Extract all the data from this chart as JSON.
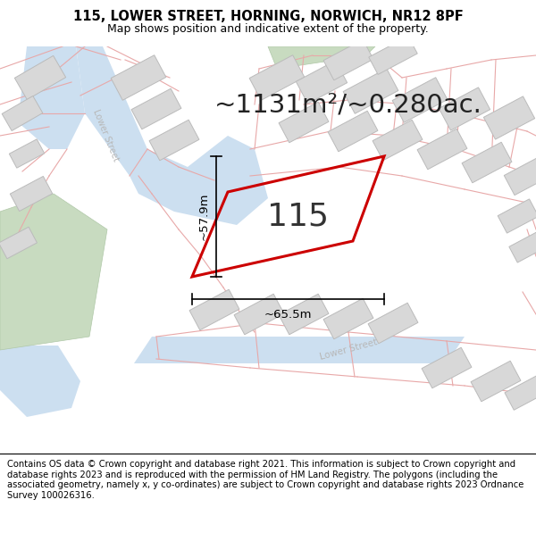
{
  "title_line1": "115, LOWER STREET, HORNING, NORWICH, NR12 8PF",
  "title_line2": "Map shows position and indicative extent of the property.",
  "area_text": "~1131m²/~0.280ac.",
  "label_115": "115",
  "dim_vertical": "~57.9m",
  "dim_horizontal": "~65.5m",
  "footer_text": "Contains OS data © Crown copyright and database right 2021. This information is subject to Crown copyright and database rights 2023 and is reproduced with the permission of HM Land Registry. The polygons (including the associated geometry, namely x, y co-ordinates) are subject to Crown copyright and database rights 2023 Ordnance Survey 100026316.",
  "bg_color": "#f7f7f5",
  "property_edge": "#cc0000",
  "dim_line_color": "#000000",
  "title_fontsize": 10.5,
  "subtitle_fontsize": 9,
  "area_fontsize": 21,
  "label_fontsize": 26,
  "dim_fontsize": 9.5,
  "footer_fontsize": 7.2,
  "road_blue": "#ccdff0",
  "road_blue_edge": "#aac8e0",
  "plot_line": "#e8a8a8",
  "building_fill": "#d8d8d8",
  "building_edge": "#bbbbbb",
  "green_fill": "#c8dbc0",
  "green_edge": "#b0c8a8",
  "street_label_color": "#b8b8b8"
}
